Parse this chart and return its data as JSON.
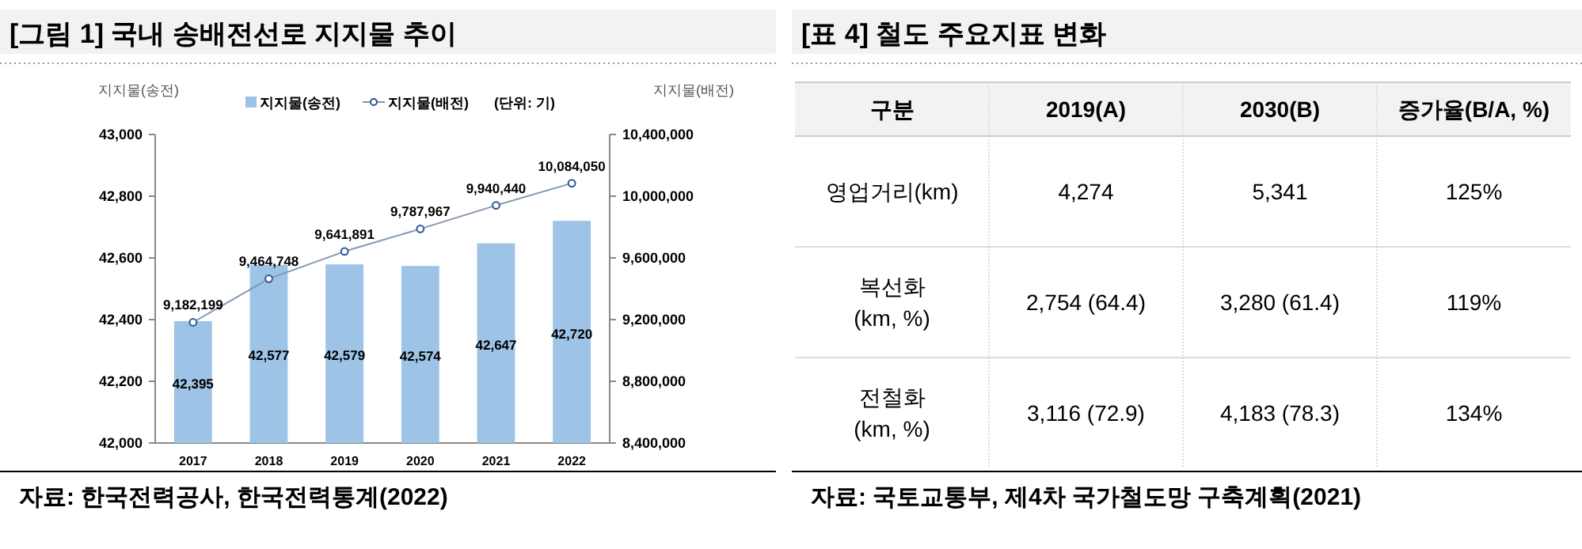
{
  "chart_data": [
    {
      "type": "bar",
      "title": "[그림 1] 국내 송배전선로 지지물 추이",
      "ylabel": "지지물(송전)",
      "y2label": "지지물(배전)",
      "categories": [
        "2017",
        "2018",
        "2019",
        "2020",
        "2021",
        "2022"
      ],
      "series": [
        {
          "name": "지지물(송전)",
          "type": "bar",
          "color": "#9dc3e6",
          "values": [
            42395,
            42577,
            42579,
            42574,
            42647,
            42720
          ],
          "value_labels": [
            "42,395",
            "42,577",
            "42,579",
            "42,574",
            "42,647",
            "42,720"
          ]
        },
        {
          "name": "지지물(배전)",
          "type": "line",
          "axis": "y2",
          "color": "#8497b0",
          "marker": "circle",
          "values": [
            9182199,
            9464748,
            9641891,
            9787967,
            9940440,
            10084050
          ],
          "value_labels": [
            "9,182,199",
            "9,464,748",
            "9,641,891",
            "9,787,967",
            "9,940,440",
            "10,084,050"
          ]
        }
      ],
      "ylim": [
        42000,
        43000
      ],
      "yticks": [
        {
          "value": 42000,
          "label": "42,000"
        },
        {
          "value": 42200,
          "label": "42,200"
        },
        {
          "value": 42400,
          "label": "42,400"
        },
        {
          "value": 42600,
          "label": "42,600"
        },
        {
          "value": 42800,
          "label": "42,800"
        },
        {
          "value": 43000,
          "label": "43,000"
        }
      ],
      "y2lim": [
        8400000,
        10400000
      ],
      "y2ticks": [
        {
          "value": 8400000,
          "label": "8,400,000"
        },
        {
          "value": 8800000,
          "label": "8,800,000"
        },
        {
          "value": 9200000,
          "label": "9,200,000"
        },
        {
          "value": 9600000,
          "label": "9,600,000"
        },
        {
          "value": 10000000,
          "label": "10,000,000"
        },
        {
          "value": 10400000,
          "label": "10,400,000"
        }
      ],
      "legend": "top",
      "grid": false,
      "annotations": [
        "(단위: 기)",
        "자료: 한국전력공사, 한국전력통계(2022)"
      ]
    },
    {
      "type": "other",
      "title": "[표 4] 철도 주요지표 변화",
      "categories": [
        "구분",
        "2019(A)",
        "2030(B)",
        "증가율(B/A,  %)"
      ],
      "cell_labels": [
        [
          "영업거리(km)",
          "4,274",
          "5,341",
          "125%"
        ],
        [
          "복선화\n(km,  %)",
          "2,754  (64.4)",
          "3,280  (61.4)",
          "119%"
        ],
        [
          "전철화\n(km,  %)",
          "3,116  (72.9)",
          "4,183  (78.3)",
          "134%"
        ]
      ],
      "annotations": [
        "자료: 국토교통부, 제4차 국가철도망 구축계획(2021)"
      ]
    }
  ]
}
